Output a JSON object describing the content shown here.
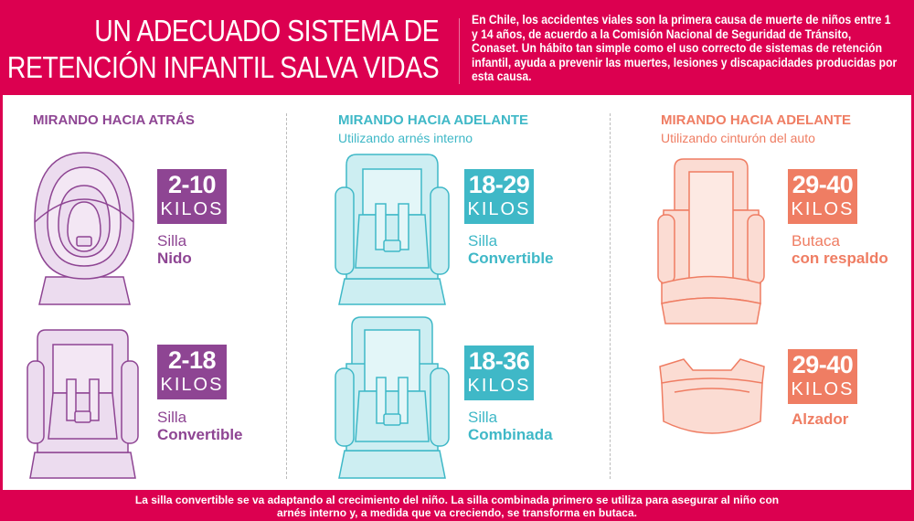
{
  "header": {
    "title_line1": "UN ADECUADO SISTEMA DE",
    "title_line2": "RETENCIÓN INFANTIL SALVA VIDAS",
    "intro": "En Chile, los accidentes viales son la primera causa de muerte de niños entre 1 y 14 años, de acuerdo a la Comisión Nacional de Seguridad de Tránsito, Conaset. Un hábito tan simple como el uso correcto de sistemas de retención infantil, ayuda a prevenir las muertes, lesiones y discapacidades producidas por esta causa."
  },
  "colors": {
    "brand": "#dc0050",
    "rear": "#8e4593",
    "forward_harness": "#3fb8c7",
    "forward_belt": "#ef7d63"
  },
  "columns": [
    {
      "heading": "MIRANDO HACIA ATRÁS",
      "subheading": "",
      "items": [
        {
          "range": "2-10",
          "unit": "KILOS",
          "type": "Silla",
          "name": "Nido",
          "icon": "infant-carrier-seat-icon"
        },
        {
          "range": "2-18",
          "unit": "KILOS",
          "type": "Silla",
          "name": "Convertible",
          "icon": "convertible-seat-icon"
        }
      ]
    },
    {
      "heading": "MIRANDO HACIA ADELANTE",
      "subheading": "Utilizando arnés interno",
      "items": [
        {
          "range": "18-29",
          "unit": "KILOS",
          "type": "Silla",
          "name": "Convertible",
          "icon": "convertible-seat-icon"
        },
        {
          "range": "18-36",
          "unit": "KILOS",
          "type": "Silla",
          "name": "Combinada",
          "icon": "combination-seat-icon"
        }
      ]
    },
    {
      "heading": "MIRANDO HACIA ADELANTE",
      "subheading": "Utilizando cinturón del auto",
      "items": [
        {
          "range": "29-40",
          "unit": "KILOS",
          "type": "Butaca",
          "name": "con respaldo",
          "icon": "high-back-booster-icon"
        },
        {
          "range": "29-40",
          "unit": "KILOS",
          "type": "",
          "name": "Alzador",
          "icon": "booster-cushion-icon"
        }
      ]
    }
  ],
  "footer": {
    "line1": "La silla convertible se va adaptando al crecimiento del niño. La silla combinada primero se utiliza para asegurar al niño con",
    "line2": "arnés interno y, a medida que va creciendo, se transforma en butaca."
  }
}
